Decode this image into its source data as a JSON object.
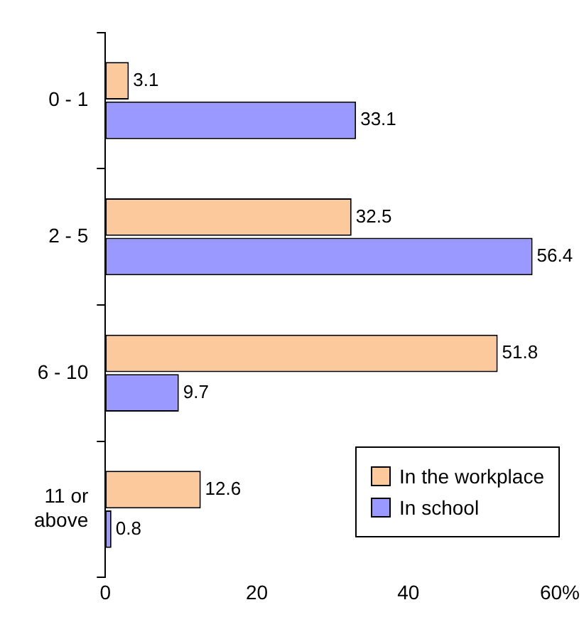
{
  "chart_data": {
    "type": "bar",
    "orientation": "horizontal",
    "categories": [
      "0 - 1",
      "2 - 5",
      "6 - 10",
      "11 or above"
    ],
    "series": [
      {
        "name": "In the workplace",
        "color": "#fbc99b",
        "values": [
          3.1,
          32.5,
          51.8,
          12.6
        ]
      },
      {
        "name": "In school",
        "color": "#9999ff",
        "values": [
          33.1,
          56.4,
          9.7,
          0.8
        ]
      }
    ],
    "xlim": [
      0,
      60
    ],
    "xticks": [
      0,
      20,
      40,
      {
        "value": 60,
        "label": "60%"
      }
    ],
    "data_labels": true,
    "grid": false,
    "legend": "bottom right"
  }
}
